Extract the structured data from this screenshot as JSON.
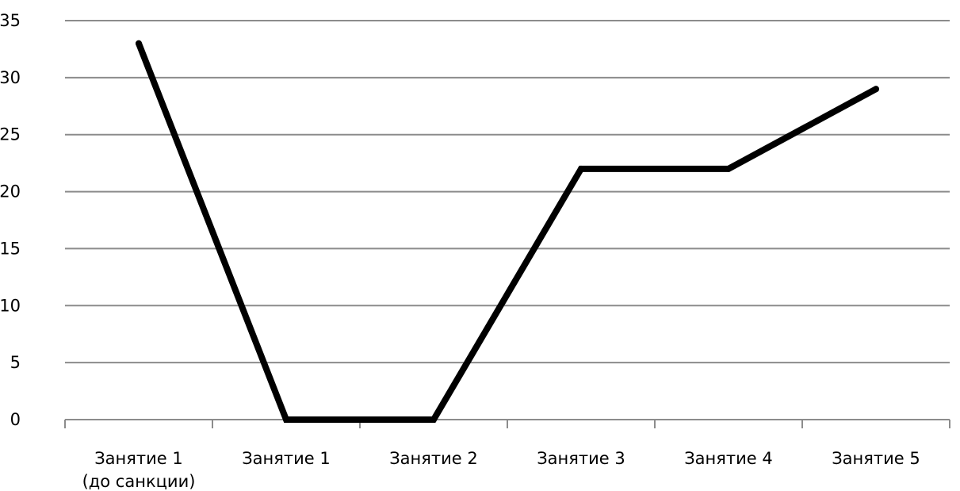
{
  "chart_data": {
    "type": "line",
    "title": "",
    "xlabel": "",
    "ylabel": "",
    "categories": [
      [
        "Занятие 1",
        "(до санкции)"
      ],
      [
        "Занятие 1"
      ],
      [
        "Занятие 2"
      ],
      [
        "Занятие 3"
      ],
      [
        "Занятие 4"
      ],
      [
        "Занятие 5"
      ]
    ],
    "y_ticks": [
      "0",
      "5",
      "10",
      "15",
      "20",
      "25",
      "30",
      "35"
    ],
    "ylim": [
      0,
      35
    ],
    "grid": true,
    "legend": "none",
    "series": [
      {
        "values": [
          33,
          0,
          0,
          22,
          22,
          29
        ],
        "color": "#000000"
      }
    ],
    "colors": {
      "gridline": "#8c8c8c",
      "line": "#000000",
      "background": "#ffffff"
    }
  }
}
